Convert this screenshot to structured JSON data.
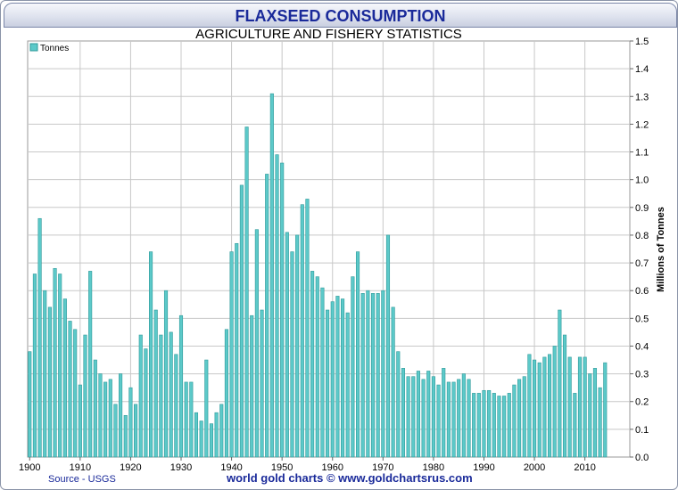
{
  "header": {
    "title": "FLAXSEED CONSUMPTION",
    "subtitle": "AGRICULTURE AND FISHERY STATISTICS"
  },
  "footer": {
    "source": "Source - USGS",
    "credit": "world gold charts © www.goldchartsrus.com"
  },
  "colors": {
    "bar_fill": "#5cc9c9",
    "bar_edge": "#2f9a9a",
    "title": "#1a2a9a",
    "grid": "#c8c8c8"
  },
  "chart_data": {
    "type": "bar",
    "ylabel": "Millions of Tonnes",
    "ylim": [
      0,
      1.5
    ],
    "yticks": [
      "0.0",
      "0.1",
      "0.2",
      "0.3",
      "0.4",
      "0.5",
      "0.6",
      "0.7",
      "0.8",
      "0.9",
      "1.0",
      "1.1",
      "1.2",
      "1.3",
      "1.4",
      "1.5"
    ],
    "xtick_labels": [
      "1900",
      "1910",
      "1920",
      "1930",
      "1940",
      "1950",
      "1960",
      "1970",
      "1980",
      "1990",
      "2000",
      "2010"
    ],
    "grid": true,
    "legend_position": "top-left",
    "series": [
      {
        "name": "Tonnes",
        "x": [
          1900,
          1901,
          1902,
          1903,
          1904,
          1905,
          1906,
          1907,
          1908,
          1909,
          1910,
          1911,
          1912,
          1913,
          1914,
          1915,
          1916,
          1917,
          1918,
          1919,
          1920,
          1921,
          1922,
          1923,
          1924,
          1925,
          1926,
          1927,
          1928,
          1929,
          1930,
          1931,
          1932,
          1933,
          1934,
          1935,
          1936,
          1937,
          1938,
          1939,
          1940,
          1941,
          1942,
          1943,
          1944,
          1945,
          1946,
          1947,
          1948,
          1949,
          1950,
          1951,
          1952,
          1953,
          1954,
          1955,
          1956,
          1957,
          1958,
          1959,
          1960,
          1961,
          1962,
          1963,
          1964,
          1965,
          1966,
          1967,
          1968,
          1969,
          1970,
          1971,
          1972,
          1973,
          1974,
          1975,
          1976,
          1977,
          1978,
          1979,
          1980,
          1981,
          1982,
          1983,
          1984,
          1985,
          1986,
          1987,
          1988,
          1989,
          1990,
          1991,
          1992,
          1993,
          1994,
          1995,
          1996,
          1997,
          1998,
          1999,
          2000,
          2001,
          2002,
          2003,
          2004,
          2005,
          2006,
          2007,
          2008,
          2009,
          2010,
          2011,
          2012,
          2013,
          2014
        ],
        "values": [
          0.38,
          0.66,
          0.86,
          0.6,
          0.54,
          0.68,
          0.66,
          0.57,
          0.49,
          0.46,
          0.26,
          0.44,
          0.67,
          0.35,
          0.3,
          0.27,
          0.28,
          0.19,
          0.3,
          0.15,
          0.25,
          0.19,
          0.44,
          0.39,
          0.74,
          0.53,
          0.44,
          0.6,
          0.45,
          0.37,
          0.51,
          0.27,
          0.27,
          0.16,
          0.13,
          0.35,
          0.12,
          0.16,
          0.19,
          0.46,
          0.74,
          0.77,
          0.98,
          1.19,
          0.51,
          0.82,
          0.53,
          1.02,
          1.31,
          1.09,
          1.06,
          0.81,
          0.74,
          0.8,
          0.91,
          0.93,
          0.67,
          0.65,
          0.61,
          0.53,
          0.56,
          0.58,
          0.57,
          0.52,
          0.65,
          0.74,
          0.59,
          0.6,
          0.59,
          0.59,
          0.6,
          0.8,
          0.54,
          0.38,
          0.32,
          0.29,
          0.29,
          0.31,
          0.28,
          0.31,
          0.29,
          0.26,
          0.32,
          0.27,
          0.27,
          0.28,
          0.3,
          0.28,
          0.23,
          0.23,
          0.24,
          0.24,
          0.23,
          0.22,
          0.22,
          0.23,
          0.26,
          0.28,
          0.29,
          0.37,
          0.35,
          0.34,
          0.36,
          0.37,
          0.4,
          0.53,
          0.44,
          0.36,
          0.23,
          0.36,
          0.36,
          0.3,
          0.32,
          0.25,
          0.34
        ]
      }
    ]
  }
}
